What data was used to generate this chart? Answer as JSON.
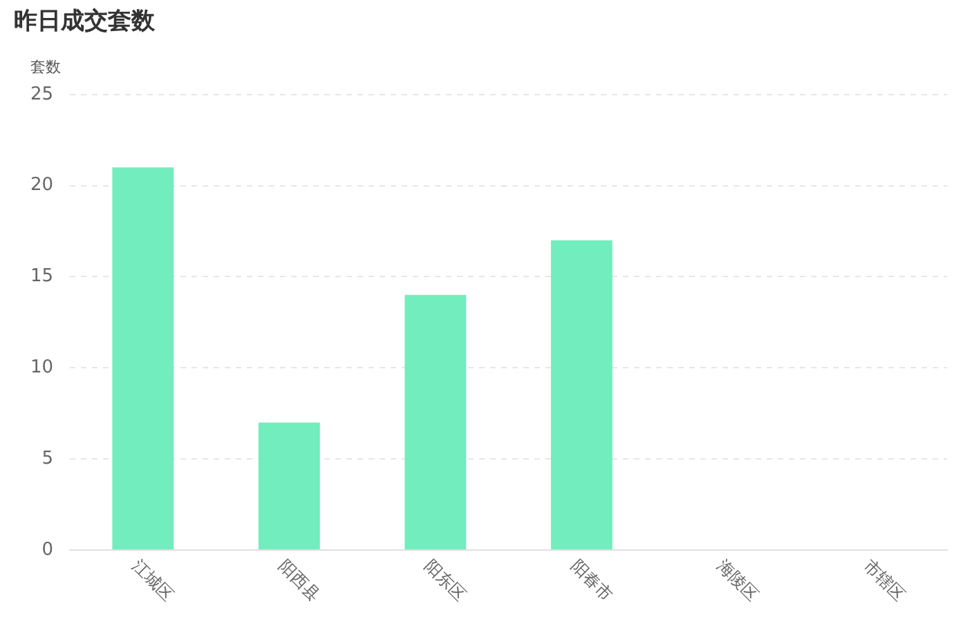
{
  "chart_data": {
    "type": "bar",
    "title": "昨日成交套数",
    "ylabel": "套数",
    "categories": [
      "江城区",
      "阳西县",
      "阳东区",
      "阳春市",
      "海陵区",
      "市辖区"
    ],
    "values": [
      21,
      7,
      14,
      17,
      0,
      0
    ],
    "color": "#72edbd",
    "ylim": [
      0,
      25
    ],
    "yticks": [
      0,
      5,
      10,
      15,
      20,
      25
    ],
    "grid": "y"
  }
}
